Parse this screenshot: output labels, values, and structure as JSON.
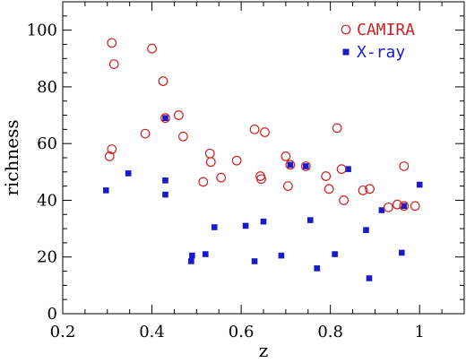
{
  "chart_data": {
    "type": "scatter",
    "xlabel": "z",
    "ylabel": "richness",
    "xlim": [
      0.2,
      1.1
    ],
    "ylim": [
      0,
      110
    ],
    "xticks": [
      0.2,
      0.4,
      0.6,
      0.8,
      1
    ],
    "xtick_labels": [
      "0.2",
      "0.4",
      "0.6",
      "0.8",
      "1"
    ],
    "yticks": [
      0,
      20,
      40,
      60,
      80,
      100
    ],
    "yticks_labels": [
      "0",
      "20",
      "40",
      "60",
      "80",
      "100"
    ],
    "grid": false,
    "legend_position": "top-right",
    "series": [
      {
        "name": "CAMIRA",
        "marker": "open-circle",
        "color": "#cc2222",
        "points": [
          [
            0.305,
            55.5
          ],
          [
            0.31,
            58
          ],
          [
            0.31,
            95.5
          ],
          [
            0.315,
            88
          ],
          [
            0.385,
            63.5
          ],
          [
            0.4,
            93.5
          ],
          [
            0.425,
            82
          ],
          [
            0.43,
            69
          ],
          [
            0.46,
            70
          ],
          [
            0.47,
            62.5
          ],
          [
            0.515,
            46.5
          ],
          [
            0.53,
            56.5
          ],
          [
            0.532,
            53.5
          ],
          [
            0.555,
            48
          ],
          [
            0.59,
            54
          ],
          [
            0.63,
            65
          ],
          [
            0.643,
            48.5
          ],
          [
            0.645,
            47.5
          ],
          [
            0.653,
            64
          ],
          [
            0.7,
            55.5
          ],
          [
            0.705,
            45
          ],
          [
            0.71,
            52.5
          ],
          [
            0.745,
            52
          ],
          [
            0.79,
            48.5
          ],
          [
            0.797,
            44
          ],
          [
            0.815,
            65.5
          ],
          [
            0.825,
            51
          ],
          [
            0.83,
            40
          ],
          [
            0.873,
            43.5
          ],
          [
            0.888,
            44
          ],
          [
            0.93,
            37.5
          ],
          [
            0.95,
            38.5
          ],
          [
            0.965,
            52
          ],
          [
            0.965,
            38
          ],
          [
            0.99,
            38
          ]
        ]
      },
      {
        "name": "X-ray",
        "marker": "filled-square",
        "color": "#1a1acc",
        "points": [
          [
            0.297,
            43.5
          ],
          [
            0.347,
            49.5
          ],
          [
            0.43,
            69
          ],
          [
            0.43,
            47
          ],
          [
            0.43,
            42
          ],
          [
            0.488,
            18.5
          ],
          [
            0.49,
            20.5
          ],
          [
            0.52,
            21
          ],
          [
            0.54,
            30.5
          ],
          [
            0.61,
            31
          ],
          [
            0.63,
            18.5
          ],
          [
            0.65,
            32.5
          ],
          [
            0.69,
            20.5
          ],
          [
            0.71,
            52.5
          ],
          [
            0.745,
            52
          ],
          [
            0.755,
            33
          ],
          [
            0.77,
            16
          ],
          [
            0.81,
            21
          ],
          [
            0.84,
            51
          ],
          [
            0.88,
            29.5
          ],
          [
            0.887,
            12.5
          ],
          [
            0.915,
            36.5
          ],
          [
            0.96,
            21.5
          ],
          [
            0.965,
            38
          ],
          [
            1.0,
            45.5
          ]
        ]
      }
    ]
  }
}
